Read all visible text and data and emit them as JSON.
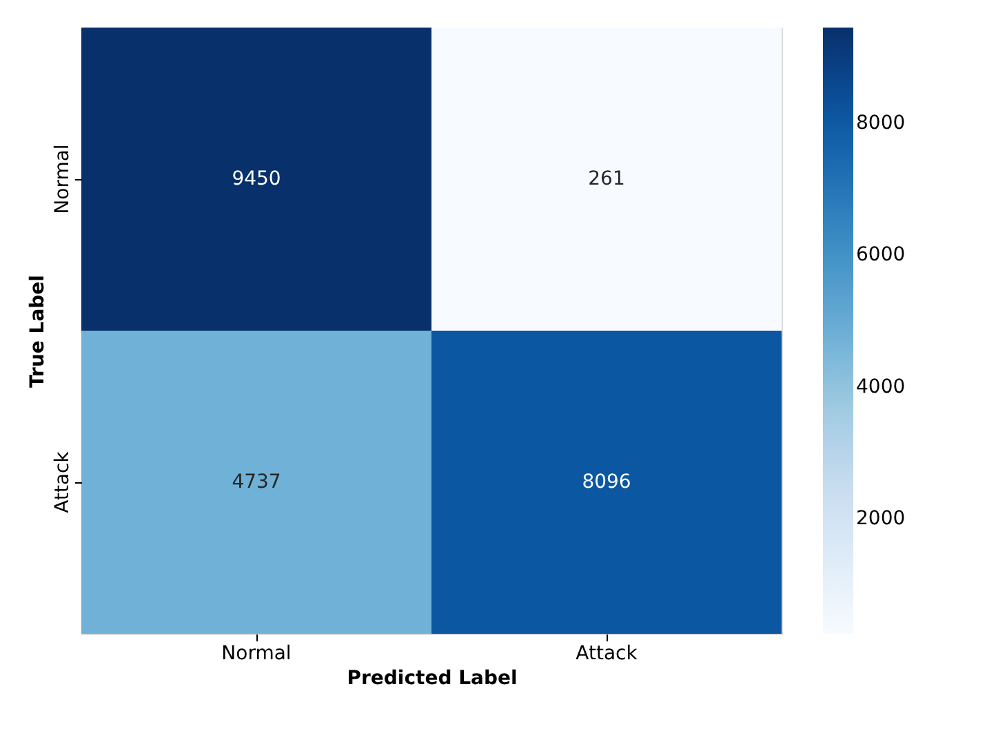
{
  "chart_data": {
    "type": "heatmap",
    "xlabel": "Predicted Label",
    "ylabel": "True Label",
    "categories": [
      "Normal",
      "Attack"
    ],
    "y_categories": [
      "Normal",
      "Attack"
    ],
    "cells": [
      [
        9450,
        261
      ],
      [
        4737,
        8096
      ]
    ],
    "clim": [
      261,
      9450
    ],
    "cticks": [
      2000,
      4000,
      6000,
      8000
    ],
    "data_labels": true
  }
}
